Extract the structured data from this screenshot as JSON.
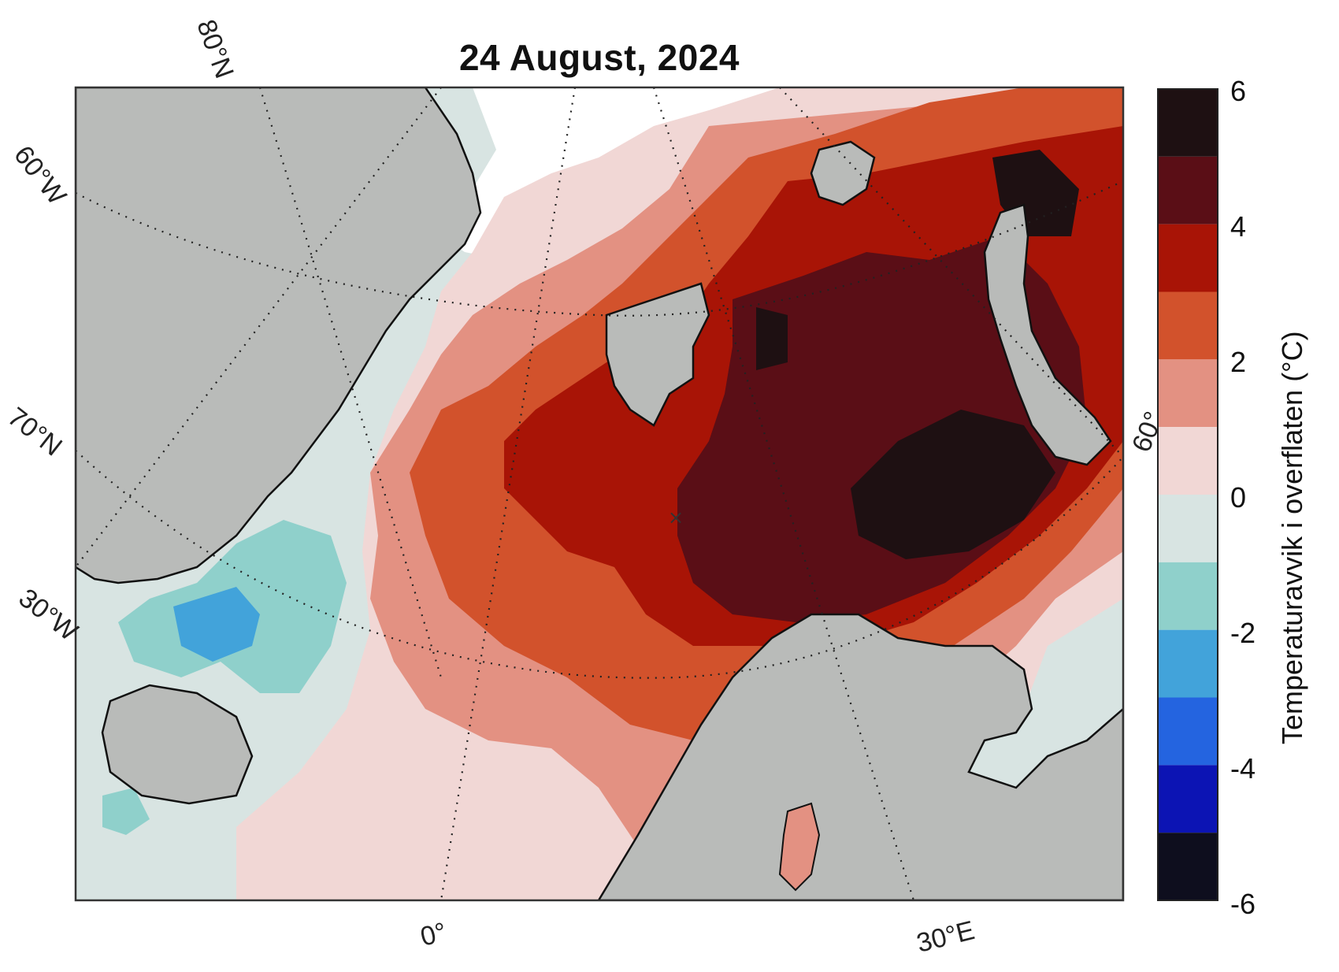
{
  "map": {
    "title": "24 August, 2024",
    "lat_labels": [
      "80°N",
      "70°N"
    ],
    "lon_labels": [
      "60°W",
      "30°W",
      "0°",
      "30°E",
      "60°"
    ],
    "colors": {
      "land": "#b9bbb9",
      "ice": "#ffffff",
      "coast": "#111111",
      "graticule": "#222222"
    }
  },
  "colorbar": {
    "label": "Temperaturavvik i overflaten (°C)",
    "tick_labels": [
      "6",
      "4",
      "2",
      "0",
      "-2",
      "-4",
      "-6"
    ],
    "bins": [
      {
        "range": [
          5,
          6
        ],
        "color": "#1e1012"
      },
      {
        "range": [
          4,
          5
        ],
        "color": "#5a0e16"
      },
      {
        "range": [
          3,
          4
        ],
        "color": "#a81406"
      },
      {
        "range": [
          2,
          3
        ],
        "color": "#d2522c"
      },
      {
        "range": [
          1,
          2
        ],
        "color": "#e39182"
      },
      {
        "range": [
          0,
          1
        ],
        "color": "#f1d7d5"
      },
      {
        "range": [
          -1,
          0
        ],
        "color": "#d8e4e2"
      },
      {
        "range": [
          -2,
          -1
        ],
        "color": "#8fd0cb"
      },
      {
        "range": [
          -3,
          -2
        ],
        "color": "#42a3da"
      },
      {
        "range": [
          -4,
          -3
        ],
        "color": "#2464e0"
      },
      {
        "range": [
          -5,
          -4
        ],
        "color": "#0c14b4"
      },
      {
        "range": [
          -6,
          -5
        ],
        "color": "#0e0e1e"
      }
    ]
  }
}
